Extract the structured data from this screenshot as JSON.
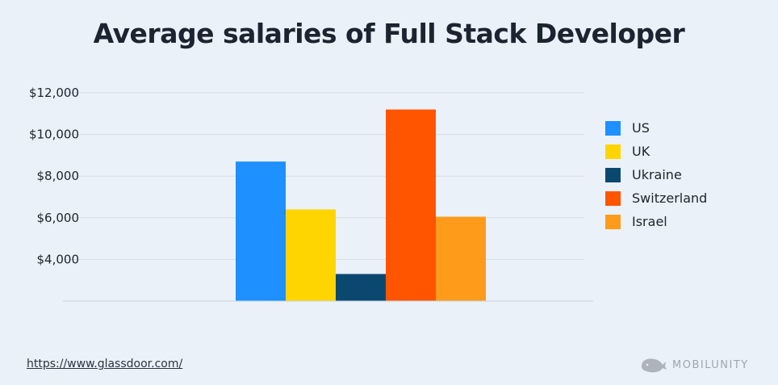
{
  "title": "Average salaries of Full Stack Developer",
  "source_link": "https://www.glassdoor.com/",
  "brand": {
    "name": "MOBILUNITY",
    "icon": "whale-logo-icon"
  },
  "chart_data": {
    "type": "bar",
    "categories": [
      "US",
      "UK",
      "Ukraine",
      "Switzerland",
      "Israel"
    ],
    "values": [
      8700,
      6400,
      3300,
      11200,
      6050
    ],
    "colors": [
      "#1e90ff",
      "#ffd500",
      "#0b4870",
      "#ff5500",
      "#ff9b1a"
    ],
    "yticks": [
      "$4,000",
      "$6,000",
      "$8,000",
      "$10,000",
      "$12,000"
    ],
    "ytick_values": [
      4000,
      6000,
      8000,
      10000,
      12000
    ],
    "ylim": [
      2000,
      12000
    ],
    "grid": true,
    "legend_position": "right",
    "title": "Average salaries of Full Stack Developer",
    "xlabel": "",
    "ylabel": ""
  }
}
